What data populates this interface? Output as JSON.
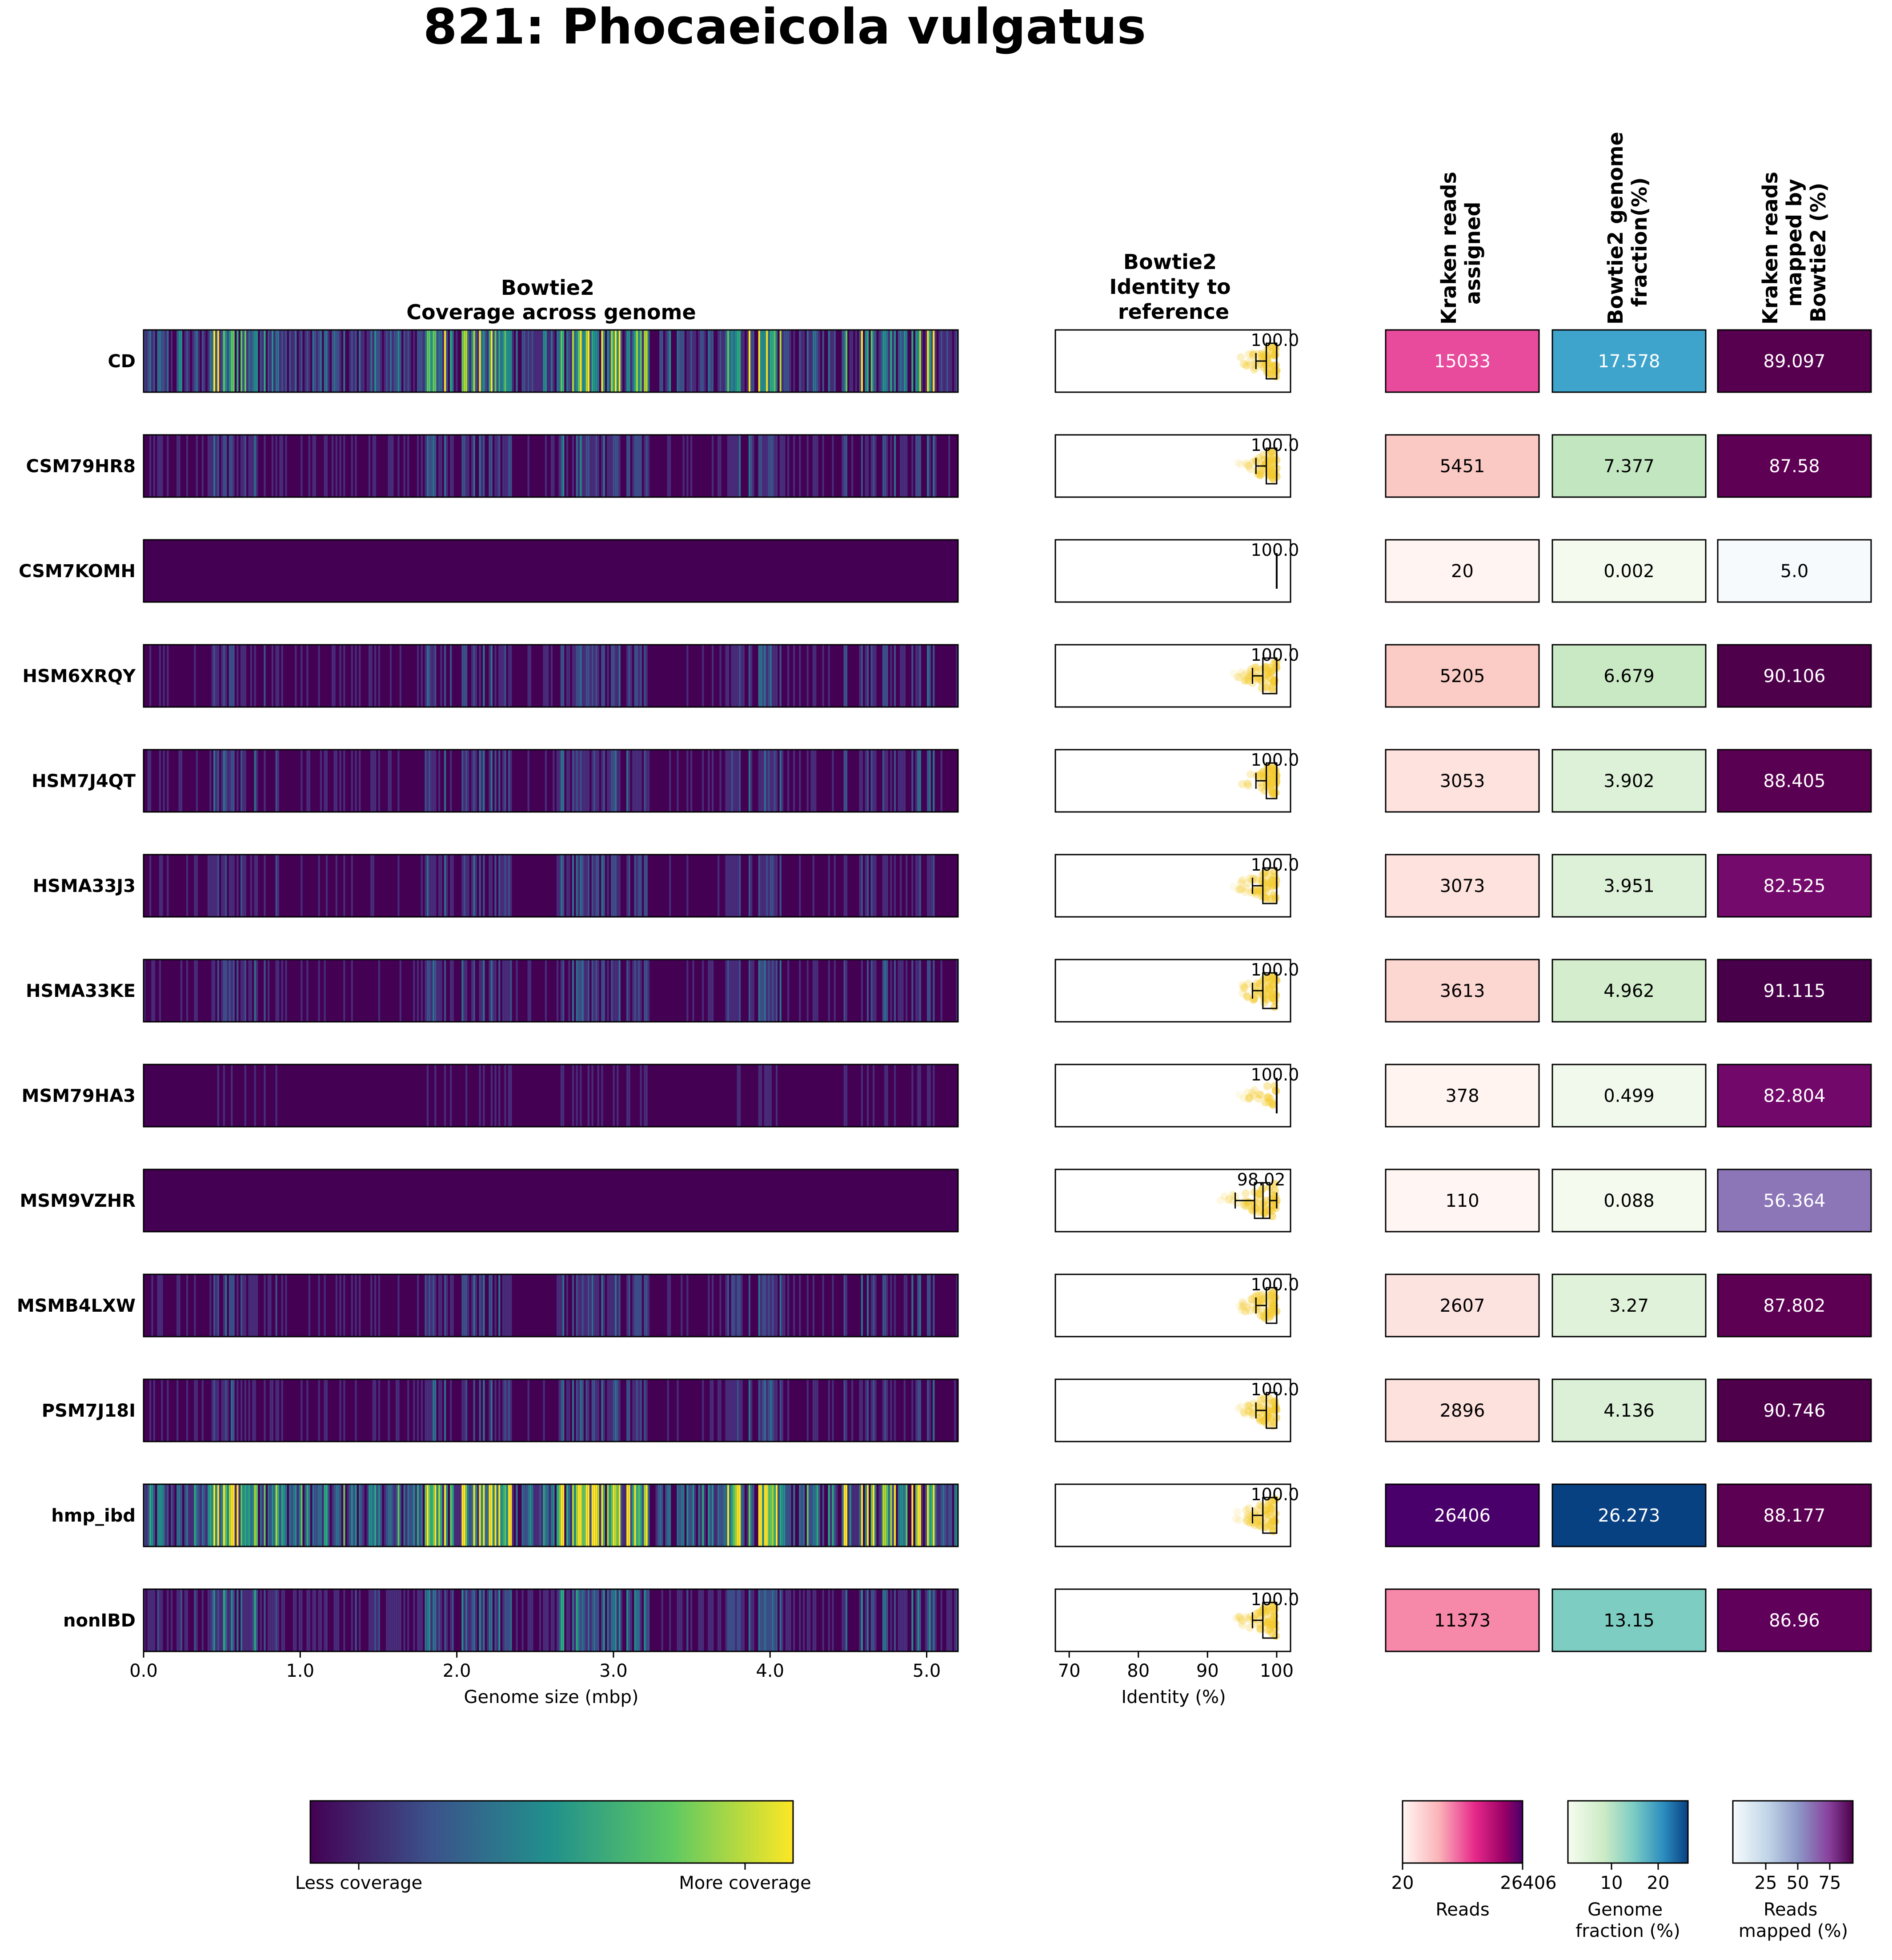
{
  "title": "821: Phocaeicola vulgatus",
  "panels": {
    "coverage": {
      "title_line1": "Bowtie2",
      "title_line2": "Coverage across genome",
      "xlabel": "Genome size (mbp)",
      "xticks": [
        "0.0",
        "1.0",
        "2.0",
        "3.0",
        "4.0",
        "5.0"
      ]
    },
    "identity": {
      "title_line1": "Bowtie2",
      "title_line2": "Identity to",
      "title_line3": "reference",
      "xlabel": "Identity (%)",
      "xticks": [
        "70",
        "80",
        "90",
        "100"
      ]
    },
    "kraken": {
      "header_line1": "Kraken reads",
      "header_line2": "assigned"
    },
    "fraction": {
      "header_line1": "Bowtie2 genome",
      "header_line2": "fraction(%)"
    },
    "mapped": {
      "header_line1": "Kraken reads",
      "header_line2": "mapped by",
      "header_line3": "Bowtie2 (%)"
    }
  },
  "chart_data": {
    "type": "heatmap",
    "rows": [
      {
        "sample": "CD",
        "median_label": "100.0",
        "kraken": "15033",
        "fraction": "17.578",
        "mapped": "89.097"
      },
      {
        "sample": "CSM79HR8",
        "median_label": "100.0",
        "kraken": "5451",
        "fraction": "7.377",
        "mapped": "87.58"
      },
      {
        "sample": "CSM7KOMH",
        "median_label": "100.0",
        "kraken": "20",
        "fraction": "0.002",
        "mapped": "5.0"
      },
      {
        "sample": "HSM6XRQY",
        "median_label": "100.0",
        "kraken": "5205",
        "fraction": "6.679",
        "mapped": "90.106"
      },
      {
        "sample": "HSM7J4QT",
        "median_label": "100.0",
        "kraken": "3053",
        "fraction": "3.902",
        "mapped": "88.405"
      },
      {
        "sample": "HSMA33J3",
        "median_label": "100.0",
        "kraken": "3073",
        "fraction": "3.951",
        "mapped": "82.525"
      },
      {
        "sample": "HSMA33KE",
        "median_label": "100.0",
        "kraken": "3613",
        "fraction": "4.962",
        "mapped": "91.115"
      },
      {
        "sample": "MSM79HA3",
        "median_label": "100.0",
        "kraken": "378",
        "fraction": "0.499",
        "mapped": "82.804"
      },
      {
        "sample": "MSM9VZHR",
        "median_label": "98.02",
        "kraken": "110",
        "fraction": "0.088",
        "mapped": "56.364"
      },
      {
        "sample": "MSMB4LXW",
        "median_label": "100.0",
        "kraken": "2607",
        "fraction": "3.27",
        "mapped": "87.802"
      },
      {
        "sample": "PSM7J18I",
        "median_label": "100.0",
        "kraken": "2896",
        "fraction": "4.136",
        "mapped": "90.746"
      },
      {
        "sample": "hmp_ibd",
        "median_label": "100.0",
        "kraken": "26406",
        "fraction": "26.273",
        "mapped": "88.177"
      },
      {
        "sample": "nonIBD",
        "median_label": "100.0",
        "kraken": "11373",
        "fraction": "13.15",
        "mapped": "86.96"
      }
    ],
    "identity_box": [
      {
        "wlo": 97.0,
        "q1": 98.5,
        "med": 100.0,
        "q3": 100.0,
        "whi": 100.0
      },
      {
        "wlo": 97.0,
        "q1": 98.5,
        "med": 100.0,
        "q3": 100.0,
        "whi": 100.0
      },
      {
        "wlo": 100.0,
        "q1": 100.0,
        "med": 100.0,
        "q3": 100.0,
        "whi": 100.0
      },
      {
        "wlo": 96.5,
        "q1": 98.0,
        "med": 100.0,
        "q3": 100.0,
        "whi": 100.0
      },
      {
        "wlo": 97.0,
        "q1": 98.5,
        "med": 100.0,
        "q3": 100.0,
        "whi": 100.0
      },
      {
        "wlo": 96.5,
        "q1": 98.0,
        "med": 100.0,
        "q3": 100.0,
        "whi": 100.0
      },
      {
        "wlo": 96.5,
        "q1": 98.0,
        "med": 100.0,
        "q3": 100.0,
        "whi": 100.0
      },
      {
        "wlo": 100.0,
        "q1": 100.0,
        "med": 100.0,
        "q3": 100.0,
        "whi": 100.0
      },
      {
        "wlo": 94.0,
        "q1": 96.8,
        "med": 98.02,
        "q3": 99.0,
        "whi": 100.0
      },
      {
        "wlo": 97.0,
        "q1": 98.5,
        "med": 100.0,
        "q3": 100.0,
        "whi": 100.0
      },
      {
        "wlo": 97.0,
        "q1": 98.5,
        "med": 100.0,
        "q3": 100.0,
        "whi": 100.0
      },
      {
        "wlo": 96.5,
        "q1": 98.0,
        "med": 100.0,
        "q3": 100.0,
        "whi": 100.0
      },
      {
        "wlo": 96.5,
        "q1": 98.0,
        "med": 100.0,
        "q3": 100.0,
        "whi": 100.0
      }
    ],
    "genome_xlim": [
      0,
      5.2
    ],
    "identity_xlim": [
      68,
      102
    ],
    "colors": {
      "kraken": [
        "#e84a9c",
        "#fbc9c4",
        "#fff4f1",
        "#fbcbc5",
        "#fde2de",
        "#fde2de",
        "#fcd7d2",
        "#fff4f0",
        "#fff5f2",
        "#fde3e0",
        "#fde1dd",
        "#49006a",
        "#f688aa"
      ],
      "fraction": [
        "#3fa4cc",
        "#c2e6c0",
        "#f4faee",
        "#c9e9c4",
        "#ddf1d8",
        "#ddf1d8",
        "#d3edcd",
        "#f1f9ec",
        "#f4faee",
        "#e0f3da",
        "#dbf0d6",
        "#084182",
        "#7ecdc3"
      ],
      "mapped": [
        "#56004f",
        "#5e0054",
        "#f6fafc",
        "#4f004b",
        "#5a0052",
        "#740a6b",
        "#49004a",
        "#72086a",
        "#8c76b8",
        "#5d0053",
        "#4f004b",
        "#5b0052",
        "#60005a"
      ],
      "text_dark": "#000000",
      "text_light": "#ffffff",
      "identity_fill": "#f4cb32",
      "coverage_base": "#440154"
    },
    "coverage_intensity": [
      0.55,
      0.22,
      0.0,
      0.2,
      0.2,
      0.18,
      0.2,
      0.1,
      0.05,
      0.2,
      0.2,
      0.8,
      0.3
    ],
    "coverage_colorbar": {
      "left_label": "Less coverage",
      "right_label": "More coverage"
    },
    "kraken_colorbar": {
      "ticks": [
        "20",
        "26406"
      ],
      "label": "Reads"
    },
    "fraction_colorbar": {
      "ticks": [
        "10",
        "20"
      ],
      "label_line1": "Genome",
      "label_line2": "fraction (%)"
    },
    "mapped_colorbar": {
      "ticks": [
        "25",
        "50",
        "75"
      ],
      "label_line1": "Reads",
      "label_line2": "mapped (%)"
    }
  }
}
